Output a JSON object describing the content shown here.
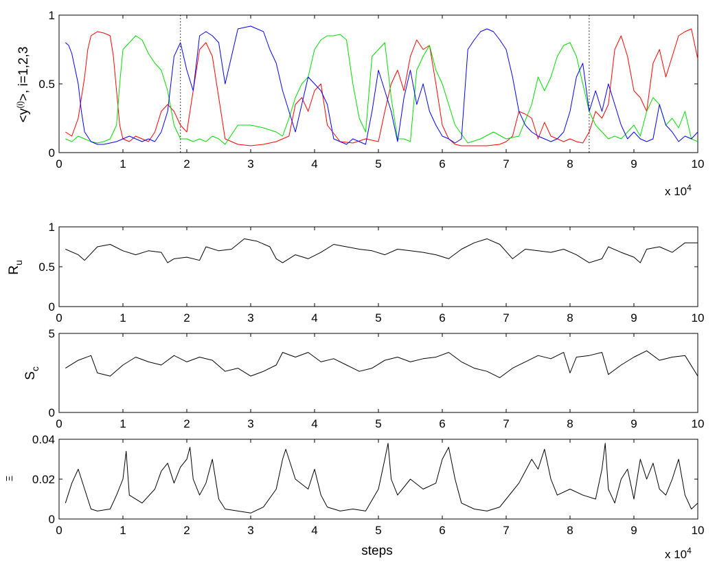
{
  "chart_data": [
    {
      "type": "line",
      "ylabel_main": "<y",
      "ylabel_sup": "(i)",
      "ylabel_rest": ">, i=1,2,3",
      "xlabel": "",
      "xlim": [
        0,
        10
      ],
      "ylim": [
        0,
        1
      ],
      "xticks": [
        "0",
        "1",
        "2",
        "3",
        "4",
        "5",
        "6",
        "7",
        "8",
        "9",
        "10"
      ],
      "yticks": [
        "0",
        "0.5",
        "1"
      ],
      "x_exponent_base": "x 10",
      "x_exponent_power": "4",
      "vertical_lines_x": [
        1.9,
        8.3
      ],
      "colors": [
        "#ff0000",
        "#00dd00",
        "#0000ff"
      ],
      "grid": false,
      "series": [
        {
          "color": "#ff0000",
          "x": [
            0.1,
            0.2,
            0.3,
            0.4,
            0.45,
            0.5,
            0.6,
            0.7,
            0.8,
            0.85,
            0.9,
            0.95,
            1.0,
            1.1,
            1.2,
            1.3,
            1.4,
            1.5,
            1.6,
            1.7,
            1.8,
            1.9,
            2.0,
            2.1,
            2.2,
            2.3,
            2.4,
            2.5,
            2.6,
            2.8,
            3.0,
            3.2,
            3.4,
            3.5,
            3.6,
            3.7,
            3.8,
            3.9,
            4.0,
            4.1,
            4.2,
            4.4,
            4.6,
            4.8,
            5.0,
            5.1,
            5.2,
            5.3,
            5.4,
            5.5,
            5.6,
            5.7,
            5.8,
            5.9,
            6.0,
            6.1,
            6.2,
            6.3,
            6.5,
            6.7,
            6.9,
            7.0,
            7.1,
            7.2,
            7.3,
            7.4,
            7.5,
            7.6,
            7.7,
            7.8,
            7.9,
            8.0,
            8.1,
            8.2,
            8.3,
            8.4,
            8.5,
            8.6,
            8.7,
            8.8,
            8.9,
            9.0,
            9.1,
            9.2,
            9.3,
            9.4,
            9.5,
            9.6,
            9.7,
            9.8,
            9.9,
            10.0
          ],
          "y": [
            0.15,
            0.12,
            0.25,
            0.55,
            0.75,
            0.85,
            0.88,
            0.87,
            0.85,
            0.7,
            0.45,
            0.2,
            0.1,
            0.08,
            0.12,
            0.1,
            0.08,
            0.15,
            0.3,
            0.35,
            0.3,
            0.2,
            0.15,
            0.45,
            0.75,
            0.8,
            0.7,
            0.4,
            0.1,
            0.06,
            0.05,
            0.06,
            0.08,
            0.1,
            0.12,
            0.35,
            0.4,
            0.3,
            0.45,
            0.5,
            0.2,
            0.08,
            0.07,
            0.1,
            0.08,
            0.3,
            0.5,
            0.6,
            0.45,
            0.7,
            0.82,
            0.75,
            0.78,
            0.5,
            0.2,
            0.1,
            0.06,
            0.05,
            0.05,
            0.05,
            0.06,
            0.08,
            0.12,
            0.3,
            0.28,
            0.25,
            0.1,
            0.22,
            0.12,
            0.1,
            0.08,
            0.1,
            0.08,
            0.07,
            0.15,
            0.3,
            0.25,
            0.35,
            0.75,
            0.85,
            0.7,
            0.45,
            0.4,
            0.3,
            0.65,
            0.75,
            0.55,
            0.7,
            0.85,
            0.88,
            0.9,
            0.68
          ]
        },
        {
          "color": "#00dd00",
          "x": [
            0.1,
            0.2,
            0.3,
            0.4,
            0.5,
            0.6,
            0.7,
            0.8,
            0.9,
            0.95,
            1.0,
            1.1,
            1.2,
            1.3,
            1.4,
            1.5,
            1.6,
            1.7,
            1.8,
            1.9,
            2.0,
            2.1,
            2.2,
            2.3,
            2.4,
            2.5,
            2.6,
            2.8,
            3.0,
            3.2,
            3.4,
            3.5,
            3.6,
            3.7,
            3.8,
            3.9,
            4.0,
            4.1,
            4.2,
            4.3,
            4.4,
            4.5,
            4.6,
            4.7,
            4.8,
            4.9,
            5.0,
            5.1,
            5.2,
            5.3,
            5.4,
            5.5,
            5.6,
            5.7,
            5.8,
            5.9,
            6.0,
            6.2,
            6.4,
            6.6,
            6.8,
            7.0,
            7.2,
            7.4,
            7.5,
            7.6,
            7.7,
            7.8,
            7.9,
            8.0,
            8.1,
            8.2,
            8.3,
            8.4,
            8.5,
            8.6,
            8.7,
            8.8,
            8.9,
            9.0,
            9.1,
            9.2,
            9.3,
            9.4,
            9.5,
            9.6,
            9.7,
            9.8,
            9.9,
            10.0
          ],
          "y": [
            0.1,
            0.08,
            0.12,
            0.1,
            0.08,
            0.07,
            0.08,
            0.1,
            0.2,
            0.5,
            0.75,
            0.8,
            0.85,
            0.82,
            0.72,
            0.65,
            0.6,
            0.45,
            0.2,
            0.1,
            0.1,
            0.08,
            0.1,
            0.08,
            0.12,
            0.1,
            0.06,
            0.2,
            0.2,
            0.18,
            0.15,
            0.12,
            0.25,
            0.4,
            0.5,
            0.55,
            0.75,
            0.82,
            0.85,
            0.85,
            0.86,
            0.82,
            0.5,
            0.25,
            0.15,
            0.7,
            0.75,
            0.8,
            0.4,
            0.1,
            0.1,
            0.08,
            0.6,
            0.7,
            0.78,
            0.6,
            0.5,
            0.2,
            0.07,
            0.1,
            0.15,
            0.1,
            0.12,
            0.35,
            0.55,
            0.45,
            0.55,
            0.7,
            0.78,
            0.8,
            0.7,
            0.5,
            0.3,
            0.2,
            0.15,
            0.1,
            0.12,
            0.1,
            0.15,
            0.2,
            0.12,
            0.3,
            0.4,
            0.35,
            0.2,
            0.25,
            0.18,
            0.3,
            0.1,
            0.08
          ]
        },
        {
          "color": "#0000ff",
          "x": [
            0.1,
            0.15,
            0.2,
            0.3,
            0.35,
            0.4,
            0.5,
            0.6,
            0.7,
            0.8,
            0.9,
            1.0,
            1.1,
            1.2,
            1.3,
            1.4,
            1.5,
            1.6,
            1.7,
            1.8,
            1.9,
            2.0,
            2.1,
            2.2,
            2.3,
            2.4,
            2.5,
            2.6,
            2.8,
            3.0,
            3.2,
            3.3,
            3.4,
            3.5,
            3.6,
            3.7,
            3.8,
            3.9,
            4.0,
            4.1,
            4.2,
            4.3,
            4.4,
            4.5,
            4.6,
            4.7,
            4.8,
            4.9,
            5.0,
            5.1,
            5.2,
            5.3,
            5.4,
            5.5,
            5.6,
            5.7,
            5.8,
            5.9,
            6.0,
            6.1,
            6.2,
            6.3,
            6.4,
            6.5,
            6.6,
            6.7,
            6.8,
            6.9,
            7.0,
            7.1,
            7.2,
            7.3,
            7.4,
            7.5,
            7.6,
            7.7,
            7.8,
            7.9,
            8.0,
            8.1,
            8.2,
            8.3,
            8.4,
            8.5,
            8.6,
            8.7,
            8.8,
            8.9,
            9.0,
            9.1,
            9.2,
            9.3,
            9.4,
            9.5,
            9.6,
            9.7,
            9.8,
            9.9,
            10.0
          ],
          "y": [
            0.8,
            0.78,
            0.72,
            0.5,
            0.3,
            0.15,
            0.08,
            0.06,
            0.06,
            0.07,
            0.08,
            0.1,
            0.12,
            0.1,
            0.08,
            0.1,
            0.08,
            0.15,
            0.3,
            0.7,
            0.8,
            0.6,
            0.45,
            0.85,
            0.88,
            0.85,
            0.8,
            0.5,
            0.9,
            0.92,
            0.88,
            0.75,
            0.65,
            0.45,
            0.3,
            0.15,
            0.35,
            0.55,
            0.5,
            0.45,
            0.35,
            0.1,
            0.08,
            0.06,
            0.1,
            0.08,
            0.06,
            0.3,
            0.6,
            0.45,
            0.3,
            0.08,
            0.4,
            0.6,
            0.35,
            0.5,
            0.3,
            0.2,
            0.12,
            0.1,
            0.07,
            0.1,
            0.75,
            0.82,
            0.88,
            0.9,
            0.88,
            0.82,
            0.75,
            0.55,
            0.3,
            0.2,
            0.15,
            0.12,
            0.1,
            0.08,
            0.1,
            0.15,
            0.3,
            0.55,
            0.65,
            0.3,
            0.45,
            0.3,
            0.5,
            0.35,
            0.2,
            0.1,
            0.15,
            0.1,
            0.08,
            0.1,
            0.35,
            0.2,
            0.15,
            0.08,
            0.12,
            0.1,
            0.15
          ]
        }
      ]
    },
    {
      "type": "line",
      "ylabel": "R",
      "ylabel_sub": "u",
      "xlim": [
        0,
        10
      ],
      "ylim": [
        0,
        1
      ],
      "xticks": [
        "0",
        "1",
        "2",
        "3",
        "4",
        "5",
        "6",
        "7",
        "8",
        "9",
        "10"
      ],
      "yticks": [
        "0",
        "0.5",
        "1"
      ],
      "grid": false,
      "series": [
        {
          "color": "#000000",
          "x": [
            0.1,
            0.3,
            0.4,
            0.6,
            0.8,
            1.0,
            1.2,
            1.4,
            1.6,
            1.7,
            1.8,
            2.0,
            2.2,
            2.3,
            2.5,
            2.7,
            2.9,
            3.1,
            3.3,
            3.4,
            3.5,
            3.7,
            3.9,
            4.1,
            4.3,
            4.5,
            4.7,
            4.9,
            5.1,
            5.3,
            5.5,
            5.7,
            5.9,
            6.1,
            6.3,
            6.5,
            6.7,
            6.9,
            7.1,
            7.3,
            7.5,
            7.7,
            7.9,
            8.1,
            8.2,
            8.3,
            8.5,
            8.6,
            8.8,
            9.0,
            9.1,
            9.2,
            9.4,
            9.6,
            9.8,
            10.0
          ],
          "y": [
            0.72,
            0.65,
            0.58,
            0.75,
            0.78,
            0.7,
            0.65,
            0.7,
            0.68,
            0.55,
            0.6,
            0.62,
            0.58,
            0.75,
            0.7,
            0.72,
            0.85,
            0.82,
            0.75,
            0.6,
            0.55,
            0.65,
            0.6,
            0.68,
            0.78,
            0.75,
            0.72,
            0.7,
            0.65,
            0.72,
            0.7,
            0.68,
            0.65,
            0.6,
            0.72,
            0.8,
            0.85,
            0.78,
            0.6,
            0.72,
            0.7,
            0.68,
            0.72,
            0.65,
            0.6,
            0.55,
            0.6,
            0.75,
            0.68,
            0.62,
            0.55,
            0.72,
            0.75,
            0.68,
            0.8,
            0.8
          ]
        }
      ]
    },
    {
      "type": "line",
      "ylabel": "S",
      "ylabel_sub": "c",
      "xlim": [
        0,
        10
      ],
      "ylim": [
        0,
        5
      ],
      "xticks": [
        "0",
        "1",
        "2",
        "3",
        "4",
        "5",
        "6",
        "7",
        "8",
        "9",
        "10"
      ],
      "yticks": [
        "0",
        "5"
      ],
      "grid": false,
      "series": [
        {
          "color": "#000000",
          "x": [
            0.1,
            0.3,
            0.5,
            0.6,
            0.8,
            1.0,
            1.2,
            1.4,
            1.6,
            1.8,
            2.0,
            2.2,
            2.4,
            2.6,
            2.8,
            3.0,
            3.2,
            3.4,
            3.5,
            3.7,
            3.9,
            4.1,
            4.3,
            4.5,
            4.7,
            4.9,
            5.1,
            5.3,
            5.5,
            5.7,
            5.9,
            6.1,
            6.3,
            6.5,
            6.7,
            6.9,
            7.1,
            7.3,
            7.5,
            7.7,
            7.9,
            8.0,
            8.1,
            8.3,
            8.5,
            8.6,
            8.8,
            9.0,
            9.2,
            9.4,
            9.6,
            9.8,
            10.0
          ],
          "y": [
            2.8,
            3.3,
            3.6,
            2.5,
            2.3,
            3.0,
            3.5,
            3.2,
            3.0,
            3.6,
            3.2,
            3.5,
            3.3,
            2.6,
            2.8,
            2.3,
            2.6,
            3.0,
            3.8,
            3.5,
            3.8,
            3.2,
            3.4,
            3.0,
            2.6,
            2.8,
            3.3,
            3.5,
            3.2,
            3.4,
            3.5,
            3.8,
            3.2,
            2.8,
            2.6,
            2.2,
            2.8,
            3.2,
            3.6,
            3.4,
            3.8,
            2.5,
            3.5,
            3.6,
            3.8,
            2.4,
            3.0,
            3.5,
            3.9,
            3.3,
            3.5,
            3.6,
            2.3
          ]
        }
      ]
    },
    {
      "type": "line",
      "ylabel": "Ξ",
      "xlabel": "steps",
      "xlim": [
        0,
        10
      ],
      "ylim": [
        0,
        0.04
      ],
      "xticks": [
        "0",
        "1",
        "2",
        "3",
        "4",
        "5",
        "6",
        "7",
        "8",
        "9",
        "10"
      ],
      "yticks": [
        "0",
        "0.02",
        "0.04"
      ],
      "x_exponent_base": "x 10",
      "x_exponent_power": "4",
      "grid": false,
      "series": [
        {
          "color": "#000000",
          "x": [
            0.1,
            0.2,
            0.3,
            0.4,
            0.5,
            0.6,
            0.8,
            0.9,
            1.0,
            1.05,
            1.1,
            1.3,
            1.5,
            1.6,
            1.7,
            1.8,
            1.9,
            2.0,
            2.05,
            2.1,
            2.2,
            2.3,
            2.4,
            2.5,
            2.6,
            2.8,
            3.0,
            3.2,
            3.4,
            3.5,
            3.55,
            3.7,
            3.9,
            4.0,
            4.1,
            4.2,
            4.4,
            4.6,
            4.8,
            5.0,
            5.1,
            5.15,
            5.2,
            5.3,
            5.5,
            5.7,
            5.9,
            6.0,
            6.1,
            6.2,
            6.3,
            6.5,
            6.7,
            6.9,
            7.0,
            7.2,
            7.4,
            7.5,
            7.6,
            7.7,
            7.8,
            8.0,
            8.2,
            8.4,
            8.5,
            8.55,
            8.6,
            8.7,
            8.8,
            8.9,
            9.0,
            9.1,
            9.2,
            9.3,
            9.4,
            9.5,
            9.6,
            9.7,
            9.8,
            9.9,
            10.0
          ],
          "y": [
            0.008,
            0.018,
            0.025,
            0.015,
            0.005,
            0.004,
            0.005,
            0.012,
            0.02,
            0.034,
            0.012,
            0.008,
            0.015,
            0.024,
            0.028,
            0.018,
            0.026,
            0.03,
            0.036,
            0.02,
            0.012,
            0.018,
            0.03,
            0.01,
            0.005,
            0.004,
            0.003,
            0.006,
            0.015,
            0.03,
            0.035,
            0.02,
            0.015,
            0.025,
            0.012,
            0.006,
            0.004,
            0.005,
            0.004,
            0.015,
            0.03,
            0.038,
            0.02,
            0.012,
            0.02,
            0.015,
            0.018,
            0.03,
            0.036,
            0.02,
            0.008,
            0.005,
            0.004,
            0.006,
            0.01,
            0.018,
            0.03,
            0.025,
            0.035,
            0.02,
            0.012,
            0.015,
            0.012,
            0.01,
            0.025,
            0.038,
            0.015,
            0.008,
            0.02,
            0.025,
            0.01,
            0.03,
            0.02,
            0.028,
            0.015,
            0.012,
            0.02,
            0.03,
            0.012,
            0.005,
            0.008
          ]
        }
      ]
    }
  ]
}
